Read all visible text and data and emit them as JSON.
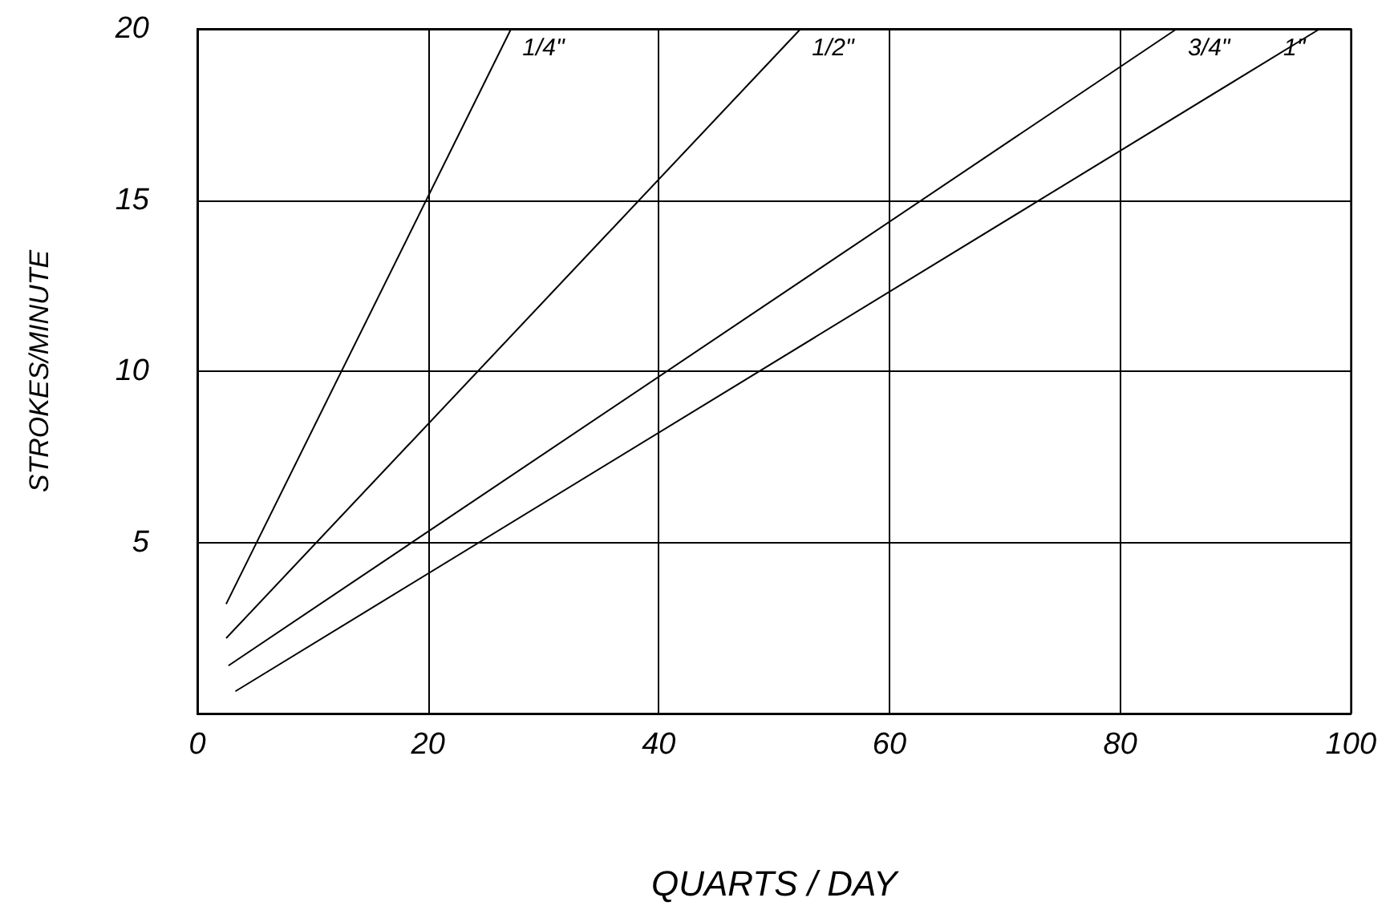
{
  "chart_data": {
    "type": "line",
    "xlabel": "QUARTS / DAY",
    "ylabel": "STROKES/MINUTE",
    "xlim": [
      0,
      100
    ],
    "xticks": [
      0,
      20,
      40,
      60,
      80,
      100
    ],
    "ylim": [
      0,
      20
    ],
    "yticks": [
      5,
      10,
      15,
      20
    ],
    "grid": true,
    "legend": false,
    "marker": "none",
    "line_style": "solid",
    "series": [
      {
        "name": "1/4\"",
        "color": "#000000",
        "x": [
          2.5,
          27.2
        ],
        "values": [
          3.2,
          20
        ]
      },
      {
        "name": "1/2\"",
        "color": "#000000",
        "x": [
          2.5,
          52.3
        ],
        "values": [
          2.2,
          20
        ]
      },
      {
        "name": "3/4\"",
        "color": "#000000",
        "x": [
          2.7,
          84.9
        ],
        "values": [
          1.4,
          20
        ]
      },
      {
        "name": "1\"",
        "color": "#000000",
        "x": [
          3.3,
          97.3
        ],
        "values": [
          0.65,
          20
        ]
      }
    ]
  }
}
